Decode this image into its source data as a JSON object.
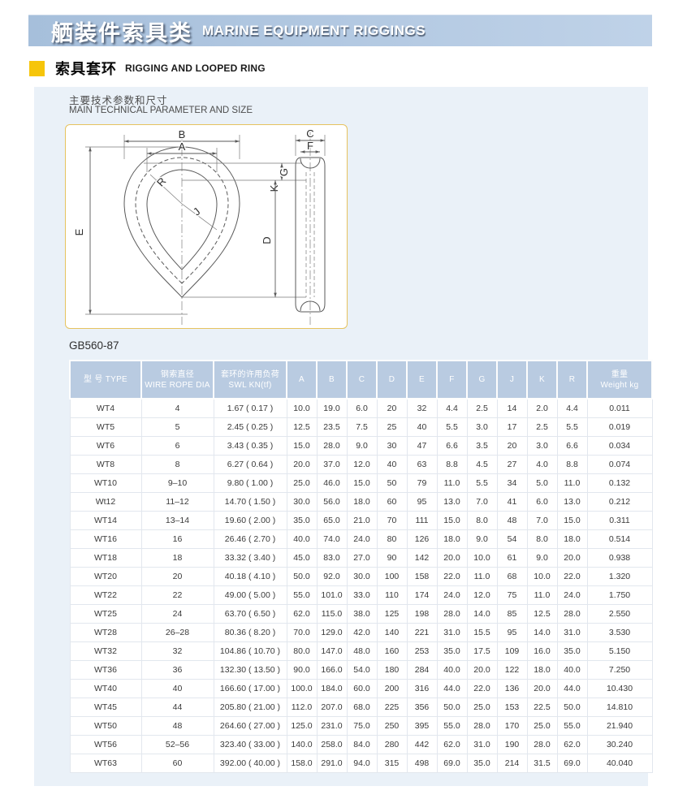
{
  "banner": {
    "title_zh": "舾装件索具类",
    "title_en": "MARINE EQUIPMENT RIGGINGS"
  },
  "section": {
    "title_zh": "索具套环",
    "title_en": "RIGGING AND LOOPED RING"
  },
  "panel": {
    "param_heading_zh": "主要技术参数和尺寸",
    "param_heading_en": "MAIN TECHNICAL PARAMETER AND SIZE",
    "standard": "GB560-87"
  },
  "diagram": {
    "labels": {
      "b": "B",
      "a": "A",
      "e": "E",
      "r": "R",
      "j": "J",
      "c": "C",
      "f": "F",
      "k": "K",
      "g": "G",
      "d": "D"
    }
  },
  "colors": {
    "banner_left": "#a6bfdb",
    "banner_right": "#bfd2e8",
    "accent_yellow": "#f6c50a",
    "panel_blue": "#eaf1f8",
    "table_header_blue": "#b9cbe1"
  },
  "table": {
    "header": {
      "type": "型 号 TYPE",
      "rope_dia_zh": "钢索直径",
      "rope_dia_en": "WIRE ROPE DIA",
      "swl_zh": "套环的许用负荷",
      "swl_en": "SWL KN(tf)",
      "dims": [
        "A",
        "B",
        "C",
        "D",
        "E",
        "F",
        "G",
        "J",
        "K",
        "R"
      ],
      "weight_zh": "重量",
      "weight_en": "Weight kg"
    },
    "rows": [
      {
        "type": "WT4",
        "rope_dia": "4",
        "swl": "1.67 ( 0.17 )",
        "dims": [
          "10.0",
          "19.0",
          "6.0",
          "20",
          "32",
          "4.4",
          "2.5",
          "14",
          "2.0",
          "4.4"
        ],
        "weight": "0.011"
      },
      {
        "type": "WT5",
        "rope_dia": "5",
        "swl": "2.45 ( 0.25 )",
        "dims": [
          "12.5",
          "23.5",
          "7.5",
          "25",
          "40",
          "5.5",
          "3.0",
          "17",
          "2.5",
          "5.5"
        ],
        "weight": "0.019"
      },
      {
        "type": "WT6",
        "rope_dia": "6",
        "swl": "3.43 ( 0.35 )",
        "dims": [
          "15.0",
          "28.0",
          "9.0",
          "30",
          "47",
          "6.6",
          "3.5",
          "20",
          "3.0",
          "6.6"
        ],
        "weight": "0.034"
      },
      {
        "type": "WT8",
        "rope_dia": "8",
        "swl": "6.27 ( 0.64 )",
        "dims": [
          "20.0",
          "37.0",
          "12.0",
          "40",
          "63",
          "8.8",
          "4.5",
          "27",
          "4.0",
          "8.8"
        ],
        "weight": "0.074"
      },
      {
        "type": "WT10",
        "rope_dia": "9–10",
        "swl": "9.80 ( 1.00 )",
        "dims": [
          "25.0",
          "46.0",
          "15.0",
          "50",
          "79",
          "11.0",
          "5.5",
          "34",
          "5.0",
          "11.0"
        ],
        "weight": "0.132"
      },
      {
        "type": "Wt12",
        "rope_dia": "11–12",
        "swl": "14.70 ( 1.50 )",
        "dims": [
          "30.0",
          "56.0",
          "18.0",
          "60",
          "95",
          "13.0",
          "7.0",
          "41",
          "6.0",
          "13.0"
        ],
        "weight": "0.212"
      },
      {
        "type": "WT14",
        "rope_dia": "13–14",
        "swl": "19.60 ( 2.00 )",
        "dims": [
          "35.0",
          "65.0",
          "21.0",
          "70",
          "111",
          "15.0",
          "8.0",
          "48",
          "7.0",
          "15.0"
        ],
        "weight": "0.311"
      },
      {
        "type": "WT16",
        "rope_dia": "16",
        "swl": "26.46 ( 2.70 )",
        "dims": [
          "40.0",
          "74.0",
          "24.0",
          "80",
          "126",
          "18.0",
          "9.0",
          "54",
          "8.0",
          "18.0"
        ],
        "weight": "0.514"
      },
      {
        "type": "WT18",
        "rope_dia": "18",
        "swl": "33.32 ( 3.40 )",
        "dims": [
          "45.0",
          "83.0",
          "27.0",
          "90",
          "142",
          "20.0",
          "10.0",
          "61",
          "9.0",
          "20.0"
        ],
        "weight": "0.938"
      },
      {
        "type": "WT20",
        "rope_dia": "20",
        "swl": "40.18 ( 4.10 )",
        "dims": [
          "50.0",
          "92.0",
          "30.0",
          "100",
          "158",
          "22.0",
          "11.0",
          "68",
          "10.0",
          "22.0"
        ],
        "weight": "1.320"
      },
      {
        "type": "WT22",
        "rope_dia": "22",
        "swl": "49.00 ( 5.00 )",
        "dims": [
          "55.0",
          "101.0",
          "33.0",
          "110",
          "174",
          "24.0",
          "12.0",
          "75",
          "11.0",
          "24.0"
        ],
        "weight": "1.750"
      },
      {
        "type": "WT25",
        "rope_dia": "24",
        "swl": "63.70 ( 6.50 )",
        "dims": [
          "62.0",
          "115.0",
          "38.0",
          "125",
          "198",
          "28.0",
          "14.0",
          "85",
          "12.5",
          "28.0"
        ],
        "weight": "2.550"
      },
      {
        "type": "WT28",
        "rope_dia": "26–28",
        "swl": "80.36 ( 8.20 )",
        "dims": [
          "70.0",
          "129.0",
          "42.0",
          "140",
          "221",
          "31.0",
          "15.5",
          "95",
          "14.0",
          "31.0"
        ],
        "weight": "3.530"
      },
      {
        "type": "WT32",
        "rope_dia": "32",
        "swl": "104.86 ( 10.70 )",
        "dims": [
          "80.0",
          "147.0",
          "48.0",
          "160",
          "253",
          "35.0",
          "17.5",
          "109",
          "16.0",
          "35.0"
        ],
        "weight": "5.150"
      },
      {
        "type": "WT36",
        "rope_dia": "36",
        "swl": "132.30 ( 13.50 )",
        "dims": [
          "90.0",
          "166.0",
          "54.0",
          "180",
          "284",
          "40.0",
          "20.0",
          "122",
          "18.0",
          "40.0"
        ],
        "weight": "7.250"
      },
      {
        "type": "WT40",
        "rope_dia": "40",
        "swl": "166.60 ( 17.00 )",
        "dims": [
          "100.0",
          "184.0",
          "60.0",
          "200",
          "316",
          "44.0",
          "22.0",
          "136",
          "20.0",
          "44.0"
        ],
        "weight": "10.430"
      },
      {
        "type": "WT45",
        "rope_dia": "44",
        "swl": "205.80 ( 21.00 )",
        "dims": [
          "112.0",
          "207.0",
          "68.0",
          "225",
          "356",
          "50.0",
          "25.0",
          "153",
          "22.5",
          "50.0"
        ],
        "weight": "14.810"
      },
      {
        "type": "WT50",
        "rope_dia": "48",
        "swl": "264.60 ( 27.00 )",
        "dims": [
          "125.0",
          "231.0",
          "75.0",
          "250",
          "395",
          "55.0",
          "28.0",
          "170",
          "25.0",
          "55.0"
        ],
        "weight": "21.940"
      },
      {
        "type": "WT56",
        "rope_dia": "52–56",
        "swl": "323.40 ( 33.00 )",
        "dims": [
          "140.0",
          "258.0",
          "84.0",
          "280",
          "442",
          "62.0",
          "31.0",
          "190",
          "28.0",
          "62.0"
        ],
        "weight": "30.240"
      },
      {
        "type": "WT63",
        "rope_dia": "60",
        "swl": "392.00 ( 40.00 )",
        "dims": [
          "158.0",
          "291.0",
          "94.0",
          "315",
          "498",
          "69.0",
          "35.0",
          "214",
          "31.5",
          "69.0"
        ],
        "weight": "40.040"
      }
    ]
  }
}
